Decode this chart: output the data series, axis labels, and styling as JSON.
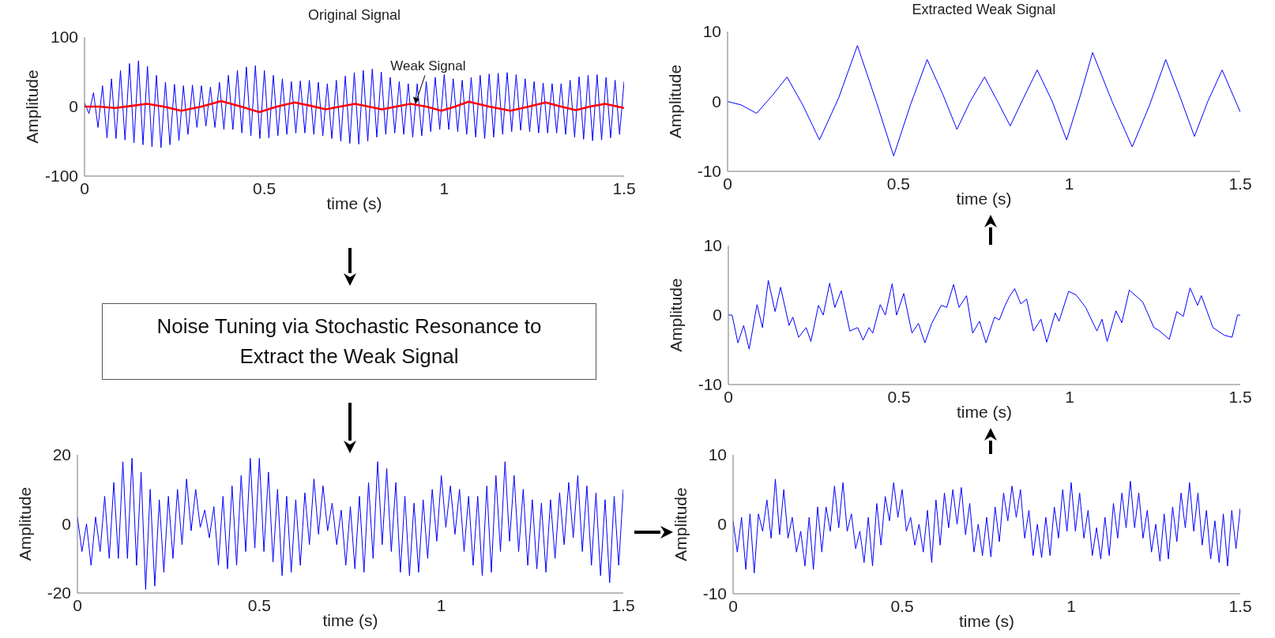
{
  "chart_data": [
    {
      "type": "line",
      "title": "Original Signal",
      "xlabel": "time (s)",
      "ylabel": "Amplitude",
      "xlim": [
        0,
        1.5
      ],
      "xticks": [
        0,
        0.5,
        1,
        1.5
      ],
      "ylim": [
        -100,
        100
      ],
      "yticks": [
        -100,
        0,
        100
      ],
      "annotations": [
        {
          "text": "Weak Signal",
          "x": 0.92,
          "y": 4
        }
      ],
      "x": [
        0,
        0.0125,
        0.025,
        0.0375,
        0.05,
        0.0625,
        0.075,
        0.0875,
        0.1,
        0.1125,
        0.125,
        0.1375,
        0.15,
        0.1625,
        0.175,
        0.1875,
        0.2,
        0.2125,
        0.225,
        0.2375,
        0.25,
        0.2625,
        0.275,
        0.2875,
        0.3,
        0.3125,
        0.325,
        0.3375,
        0.35,
        0.3625,
        0.375,
        0.3875,
        0.4,
        0.4125,
        0.425,
        0.4375,
        0.45,
        0.4625,
        0.475,
        0.4875,
        0.5,
        0.5125,
        0.525,
        0.5375,
        0.55,
        0.5625,
        0.575,
        0.5875,
        0.6,
        0.6125,
        0.625,
        0.6375,
        0.65,
        0.6625,
        0.675,
        0.6875,
        0.7,
        0.7125,
        0.725,
        0.7375,
        0.75,
        0.7625,
        0.775,
        0.7875,
        0.8,
        0.8125,
        0.825,
        0.8375,
        0.85,
        0.8625,
        0.875,
        0.8875,
        0.9,
        0.9125,
        0.925,
        0.9375,
        0.95,
        0.9625,
        0.975,
        0.9875,
        1,
        1.0125,
        1.025,
        1.0375,
        1.05,
        1.0625,
        1.075,
        1.0875,
        1.1,
        1.1125,
        1.125,
        1.1375,
        1.15,
        1.1625,
        1.175,
        1.1875,
        1.2,
        1.2125,
        1.225,
        1.2375,
        1.25,
        1.2625,
        1.275,
        1.2875,
        1.3,
        1.3125,
        1.325,
        1.3375,
        1.35,
        1.3625,
        1.375,
        1.3875,
        1.4,
        1.4125,
        1.425,
        1.4375,
        1.45,
        1.4625,
        1.475,
        1.4875,
        1.5
      ],
      "series": [
        {
          "color": "#0000ff",
          "values": [
            5,
            -10,
            20,
            -30,
            30,
            -45,
            40,
            -46,
            52,
            -48,
            62,
            -52,
            66,
            -55,
            58,
            -58,
            45,
            -59,
            35,
            -55,
            32,
            -49,
            30,
            -40,
            31,
            -30,
            30,
            -28,
            28,
            -30,
            35,
            -33,
            45,
            -33,
            52,
            -38,
            57,
            -42,
            59,
            -46,
            52,
            -45,
            45,
            -42,
            40,
            -40,
            36,
            -38,
            37,
            -38,
            38,
            -40,
            35,
            -42,
            33,
            -46,
            38,
            -50,
            44,
            -53,
            49,
            -54,
            52,
            -50,
            54,
            -44,
            50,
            -40,
            42,
            -38,
            36,
            -40,
            33,
            -44,
            33,
            -42,
            36,
            -36,
            42,
            -33,
            46,
            -33,
            40,
            -36,
            38,
            -40,
            42,
            -44,
            45,
            -46,
            47,
            -44,
            48,
            -40,
            49,
            -36,
            46,
            -34,
            40,
            -36,
            36,
            -38,
            34,
            -38,
            33,
            -38,
            33,
            -40,
            38,
            -44,
            43,
            -47,
            45,
            -49,
            46,
            -48,
            42,
            -45,
            38,
            -40,
            36
          ]
        },
        {
          "color": "#ff0000",
          "x": [
            0,
            0.04,
            0.085,
            0.13,
            0.174,
            0.22,
            0.269,
            0.325,
            0.38,
            0.435,
            0.486,
            0.535,
            0.584,
            0.63,
            0.671,
            0.71,
            0.752,
            0.79,
            0.827,
            0.866,
            0.906,
            0.95,
            0.992,
            1.03,
            1.068,
            1.125,
            1.184,
            1.235,
            1.282,
            1.325,
            1.366,
            1.405,
            1.447,
            1.5
          ],
          "values": [
            0,
            0,
            -2,
            1,
            4,
            0,
            -6,
            0,
            8,
            0,
            -8,
            0,
            6,
            1,
            -4,
            0,
            4,
            0,
            -4,
            0,
            4,
            0,
            -6,
            0,
            7,
            0,
            -6,
            0,
            6,
            0,
            -5,
            0,
            4,
            -2
          ]
        }
      ]
    },
    {
      "type": "line",
      "title": "Extracted Weak Signal",
      "xlabel": "time (s)",
      "ylabel": "Amplitude",
      "xlim": [
        0,
        1.5
      ],
      "xticks": [
        0,
        0.5,
        1,
        1.5
      ],
      "ylim": [
        -10,
        10
      ],
      "yticks": [
        -10,
        0,
        10
      ],
      "x": [
        0,
        0.04,
        0.085,
        0.13,
        0.174,
        0.22,
        0.269,
        0.325,
        0.38,
        0.435,
        0.486,
        0.535,
        0.584,
        0.63,
        0.671,
        0.71,
        0.752,
        0.79,
        0.827,
        0.866,
        0.906,
        0.95,
        0.992,
        1.03,
        1.068,
        1.125,
        1.184,
        1.235,
        1.282,
        1.325,
        1.366,
        1.405,
        1.447,
        1.5
      ],
      "series": [
        {
          "color": "#0000ff",
          "values": [
            0,
            -0.5,
            -1.7,
            0.8,
            3.5,
            -0.5,
            -5.5,
            0.5,
            8,
            0,
            -7.8,
            -0.5,
            6,
            1,
            -4,
            0,
            3.5,
            0,
            -3.5,
            0.5,
            4.5,
            0,
            -5.5,
            0.5,
            7,
            0,
            -6.5,
            -0.5,
            6,
            0.5,
            -5,
            0,
            4.5,
            -1.5
          ]
        }
      ]
    },
    {
      "type": "other",
      "annotations": [
        "Noise Tuning via Stochastic Resonance to Extract the Weak Signal"
      ]
    },
    {
      "type": "line",
      "xlabel": "time (s)",
      "ylabel": "Amplitude",
      "xlim": [
        0,
        1.5
      ],
      "xticks": [
        0,
        0.5,
        1,
        1.5
      ],
      "ylim": [
        -10,
        10
      ],
      "yticks": [
        -10,
        0,
        10
      ],
      "x": [
        0,
        0.011,
        0.028,
        0.045,
        0.061,
        0.084,
        0.1,
        0.117,
        0.137,
        0.153,
        0.178,
        0.189,
        0.206,
        0.228,
        0.242,
        0.264,
        0.278,
        0.297,
        0.312,
        0.331,
        0.356,
        0.379,
        0.395,
        0.412,
        0.423,
        0.445,
        0.46,
        0.48,
        0.493,
        0.514,
        0.538,
        0.557,
        0.576,
        0.596,
        0.624,
        0.64,
        0.66,
        0.676,
        0.698,
        0.716,
        0.736,
        0.755,
        0.78,
        0.794,
        0.811,
        0.824,
        0.839,
        0.857,
        0.874,
        0.894,
        0.916,
        0.933,
        0.958,
        0.969,
        0.997,
        1.019,
        1.047,
        1.08,
        1.095,
        1.11,
        1.136,
        1.153,
        1.175,
        1.214,
        1.247,
        1.264,
        1.292,
        1.314,
        1.333,
        1.353,
        1.375,
        1.386,
        1.42,
        1.453,
        1.476,
        1.492,
        1.5
      ],
      "series": [
        {
          "color": "#0000ff",
          "values": [
            0,
            0,
            -4,
            -1.5,
            -4.9,
            1.5,
            -1.8,
            5,
            0.5,
            4,
            -1.5,
            -0.3,
            -3.2,
            -1.8,
            -3.8,
            1.4,
            0,
            4.6,
            1.1,
            3.5,
            -2.3,
            -1.8,
            -3.6,
            -1.8,
            -2.6,
            1.5,
            0,
            4.5,
            0,
            3.1,
            -2.6,
            -1.2,
            -4,
            -1.2,
            1.4,
            1.1,
            4.4,
            1.1,
            2.8,
            -2.6,
            -0.9,
            -4,
            -0.3,
            -0.7,
            1.4,
            2.7,
            3.8,
            1.6,
            2.3,
            -2.3,
            -0.6,
            -3.9,
            0.3,
            -0.9,
            3.4,
            2.9,
            1.1,
            -2.3,
            -0.6,
            -3.8,
            0.6,
            -1.1,
            3.6,
            1.9,
            -1.8,
            -2.3,
            -3.5,
            0.5,
            -0.2,
            3.9,
            1.4,
            2.8,
            -1.8,
            -2.9,
            -3.2,
            0,
            0
          ]
        }
      ]
    },
    {
      "type": "line",
      "xlabel": "time (s)",
      "ylabel": "Amplitude",
      "xlim": [
        0,
        1.5
      ],
      "xticks": [
        0,
        0.5,
        1,
        1.5
      ],
      "ylim": [
        -20,
        20
      ],
      "yticks": [
        -20,
        0,
        20
      ],
      "x": [
        0,
        0.0125,
        0.025,
        0.0375,
        0.05,
        0.0625,
        0.075,
        0.0875,
        0.1,
        0.1125,
        0.125,
        0.1375,
        0.15,
        0.1625,
        0.175,
        0.1875,
        0.2,
        0.2125,
        0.225,
        0.2375,
        0.25,
        0.2625,
        0.275,
        0.2875,
        0.3,
        0.3125,
        0.325,
        0.3375,
        0.35,
        0.3625,
        0.375,
        0.3875,
        0.4,
        0.4125,
        0.425,
        0.4375,
        0.45,
        0.4625,
        0.475,
        0.4875,
        0.5,
        0.5125,
        0.525,
        0.5375,
        0.55,
        0.5625,
        0.575,
        0.5875,
        0.6,
        0.6125,
        0.625,
        0.6375,
        0.65,
        0.6625,
        0.675,
        0.6875,
        0.7,
        0.7125,
        0.725,
        0.7375,
        0.75,
        0.7625,
        0.775,
        0.7875,
        0.8,
        0.8125,
        0.825,
        0.8375,
        0.85,
        0.8625,
        0.875,
        0.8875,
        0.9,
        0.9125,
        0.925,
        0.9375,
        0.95,
        0.9625,
        0.975,
        0.9875,
        1,
        1.0125,
        1.025,
        1.0375,
        1.05,
        1.0625,
        1.075,
        1.0875,
        1.1,
        1.1125,
        1.125,
        1.1375,
        1.15,
        1.1625,
        1.175,
        1.1875,
        1.2,
        1.2125,
        1.225,
        1.2375,
        1.25,
        1.2625,
        1.275,
        1.2875,
        1.3,
        1.3125,
        1.325,
        1.3375,
        1.35,
        1.3625,
        1.375,
        1.3875,
        1.4,
        1.4125,
        1.425,
        1.4375,
        1.45,
        1.4625,
        1.475,
        1.4875,
        1.5
      ],
      "series": [
        {
          "color": "#0000ff",
          "values": [
            2,
            -8,
            0,
            -12,
            2,
            -8,
            8,
            -10,
            12,
            -10,
            18,
            -10,
            19,
            -12,
            15,
            -19,
            10,
            -18,
            7,
            -14,
            8,
            -10,
            10,
            -6,
            13,
            -2,
            10,
            -1,
            4,
            -4,
            5,
            -12,
            8,
            -13,
            11,
            -12,
            14,
            -8,
            19,
            -7,
            19,
            -8,
            15,
            -11,
            10,
            -15,
            8,
            -14,
            7,
            -12,
            9,
            -6,
            13,
            -3,
            11,
            -2,
            6,
            -6,
            4,
            -12,
            5,
            -13,
            8,
            -14,
            12,
            -10,
            18,
            -6,
            16,
            -8,
            12,
            -14,
            8,
            -15,
            6,
            -14,
            7,
            -10,
            10,
            -5,
            14,
            -1,
            11,
            -3,
            10,
            -8,
            8,
            -12,
            8,
            -15,
            11,
            -14,
            14,
            -8,
            18,
            -5,
            14,
            -8,
            10,
            -12,
            7,
            -13,
            6,
            -14,
            7,
            -10,
            9,
            -6,
            12,
            -4,
            14,
            -8,
            11,
            -12,
            9,
            -15,
            7,
            -17,
            8,
            -12,
            10
          ]
        }
      ]
    },
    {
      "type": "line",
      "xlabel": "time (s)",
      "ylabel": "Amplitude",
      "xlim": [
        0,
        1.5
      ],
      "xticks": [
        0,
        0.5,
        1,
        1.5
      ],
      "ylim": [
        -10,
        10
      ],
      "yticks": [
        -10,
        0,
        10
      ],
      "x": [
        0,
        0.0125,
        0.025,
        0.0375,
        0.05,
        0.0625,
        0.075,
        0.0875,
        0.1,
        0.1125,
        0.125,
        0.1375,
        0.15,
        0.1625,
        0.175,
        0.1875,
        0.2,
        0.2125,
        0.225,
        0.2375,
        0.25,
        0.2625,
        0.275,
        0.2875,
        0.3,
        0.3125,
        0.325,
        0.3375,
        0.35,
        0.3625,
        0.375,
        0.3875,
        0.4,
        0.4125,
        0.425,
        0.4375,
        0.45,
        0.4625,
        0.475,
        0.4875,
        0.5,
        0.5125,
        0.525,
        0.5375,
        0.55,
        0.5625,
        0.575,
        0.5875,
        0.6,
        0.6125,
        0.625,
        0.6375,
        0.65,
        0.6625,
        0.675,
        0.6875,
        0.7,
        0.7125,
        0.725,
        0.7375,
        0.75,
        0.7625,
        0.775,
        0.7875,
        0.8,
        0.8125,
        0.825,
        0.8375,
        0.85,
        0.8625,
        0.875,
        0.8875,
        0.9,
        0.9125,
        0.925,
        0.9375,
        0.95,
        0.9625,
        0.975,
        0.9875,
        1,
        1.0125,
        1.025,
        1.0375,
        1.05,
        1.0625,
        1.075,
        1.0875,
        1.1,
        1.1125,
        1.125,
        1.1375,
        1.15,
        1.1625,
        1.175,
        1.1875,
        1.2,
        1.2125,
        1.225,
        1.2375,
        1.25,
        1.2625,
        1.275,
        1.2875,
        1.3,
        1.3125,
        1.325,
        1.3375,
        1.35,
        1.3625,
        1.375,
        1.3875,
        1.4,
        1.4125,
        1.425,
        1.4375,
        1.45,
        1.4625,
        1.475,
        1.4875,
        1.5
      ],
      "series": [
        {
          "color": "#0000ff",
          "values": [
            0.5,
            -4,
            1,
            -6.5,
            1.5,
            -7,
            1.5,
            -1,
            3.5,
            -2,
            6.5,
            -1.5,
            5,
            -2,
            1,
            -4,
            -1,
            -6,
            1,
            -6.5,
            2.5,
            -4,
            2.5,
            -1,
            5.5,
            -0.5,
            6,
            -1,
            1.5,
            -3.5,
            -1,
            -5.5,
            1,
            -6,
            3,
            -3,
            4,
            0.5,
            6,
            1,
            5,
            -1,
            1,
            -3,
            0,
            -4,
            2,
            -5.5,
            3.5,
            -3,
            4.5,
            -0.5,
            5,
            0,
            5.3,
            -1.5,
            3,
            -4,
            0,
            -4.5,
            1,
            -4.7,
            2.5,
            -2.5,
            4.5,
            0.5,
            5.5,
            1,
            5,
            -2,
            2,
            -4.5,
            0,
            -4.8,
            1,
            -4.5,
            2.5,
            -2,
            5,
            -1,
            6,
            -1,
            4.5,
            -2,
            2,
            -4.5,
            -0.5,
            -5,
            1,
            -4.5,
            3,
            -2,
            4.5,
            -0.5,
            6.2,
            -0.5,
            4.5,
            -2,
            2,
            -4,
            0,
            -5.3,
            1.5,
            -5,
            2.5,
            -2.5,
            4.5,
            -0.5,
            6,
            -1,
            4.5,
            -3,
            2,
            -5,
            0.5,
            -5.5,
            1.5,
            -6,
            2,
            -3.5,
            2.3
          ]
        }
      ]
    }
  ]
}
